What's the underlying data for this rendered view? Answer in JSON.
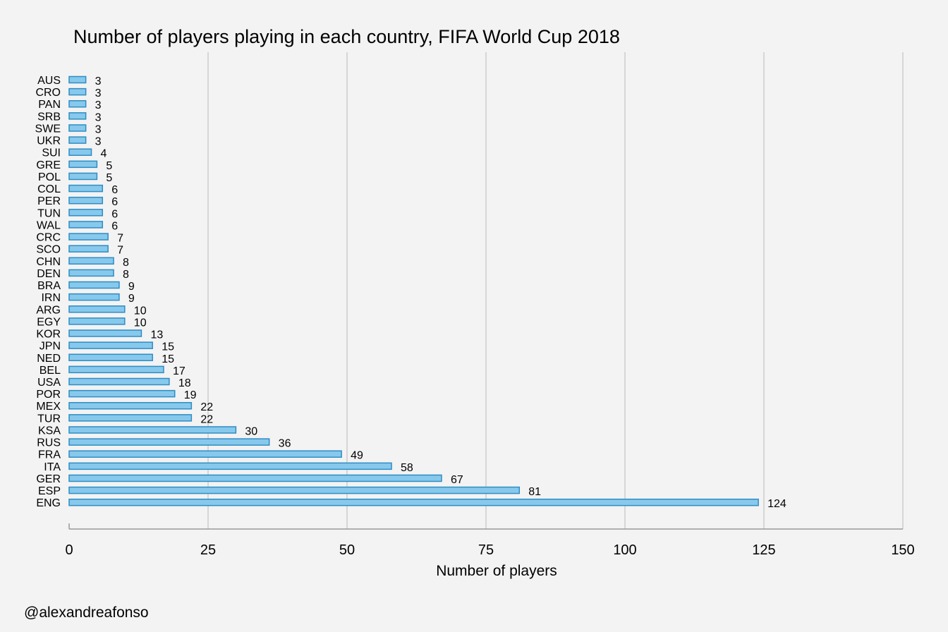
{
  "credit": "@alexandreafonso",
  "chart_data": {
    "type": "bar",
    "orientation": "horizontal",
    "title": "Number of players playing in each country, FIFA World Cup 2018",
    "xlabel": "Number of players",
    "ylabel": "",
    "xlim": [
      0,
      150
    ],
    "xticks": [
      0,
      25,
      50,
      75,
      100,
      125,
      150
    ],
    "grid": true,
    "colors": {
      "bar_fill": "#87c9ec",
      "bar_stroke": "#2f8dc4"
    },
    "categories": [
      "AUS",
      "CRO",
      "PAN",
      "SRB",
      "SWE",
      "UKR",
      "SUI",
      "GRE",
      "POL",
      "COL",
      "PER",
      "TUN",
      "WAL",
      "CRC",
      "SCO",
      "CHN",
      "DEN",
      "BRA",
      "IRN",
      "ARG",
      "EGY",
      "KOR",
      "JPN",
      "NED",
      "BEL",
      "USA",
      "POR",
      "MEX",
      "TUR",
      "KSA",
      "RUS",
      "FRA",
      "ITA",
      "GER",
      "ESP",
      "ENG"
    ],
    "values": [
      3,
      3,
      3,
      3,
      3,
      3,
      4,
      5,
      5,
      6,
      6,
      6,
      6,
      7,
      7,
      8,
      8,
      9,
      9,
      10,
      10,
      13,
      15,
      15,
      17,
      18,
      19,
      22,
      22,
      30,
      36,
      49,
      58,
      67,
      81,
      124
    ]
  }
}
